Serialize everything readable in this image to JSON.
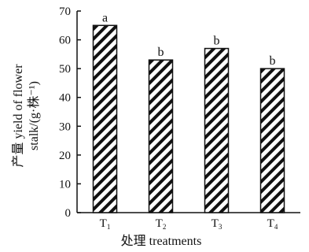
{
  "chart_data": {
    "type": "bar",
    "categories": [
      {
        "base": "T",
        "sub": "1"
      },
      {
        "base": "T",
        "sub": "2"
      },
      {
        "base": "T",
        "sub": "3"
      },
      {
        "base": "T",
        "sub": "4"
      }
    ],
    "values": [
      65,
      53,
      57,
      50
    ],
    "annotations": [
      "a",
      "b",
      "b",
      "b"
    ],
    "xlabel": "处理 treatments",
    "ylabel_line1": "产量 yield of flower",
    "ylabel_line2": "stalk/(g·株⁻¹)",
    "ylim": [
      0,
      70
    ],
    "yticks": [
      0,
      10,
      20,
      30,
      40,
      50,
      60,
      70
    ],
    "grid": false,
    "legend": "none",
    "bar_fill": "diagonal-hatch",
    "colors": {
      "ink": "#111111",
      "background": "#ffffff"
    }
  }
}
